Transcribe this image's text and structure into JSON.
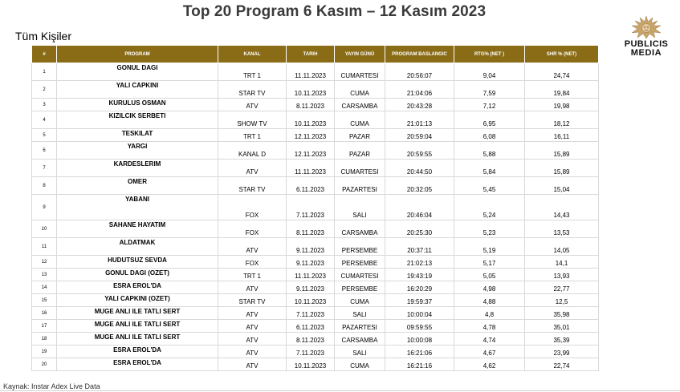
{
  "title": "Top 20 Program 6 Kasım – 12 Kasım 2023",
  "subtitle": "Tüm Kişiler",
  "logo": {
    "line1": "PUBLICIS",
    "line2": "MEDIA"
  },
  "headers": [
    "#",
    "PROGRAM",
    "KANAL",
    "TARIH",
    "YAYIN GÜNÜ",
    "PROGRAM BASLANGIC",
    "RTG% (NET )",
    "SHR % (NET)"
  ],
  "rows": [
    [
      "1",
      "GONUL DAGI",
      "TRT 1",
      "11.11.2023",
      "CUMARTESI",
      "20:56:07",
      "9,04",
      "24,74"
    ],
    [
      "2",
      "YALI CAPKINI",
      "STAR TV",
      "10.11.2023",
      "CUMA",
      "21:04:06",
      "7,59",
      "19,84"
    ],
    [
      "3",
      "KURULUS OSMAN",
      "ATV",
      "8.11.2023",
      "CARSAMBA",
      "20:43:28",
      "7,12",
      "19,98"
    ],
    [
      "4",
      "KIZILCIK SERBETI",
      "SHOW TV",
      "10.11.2023",
      "CUMA",
      "21:01:13",
      "6,95",
      "18,12"
    ],
    [
      "5",
      "TESKILAT",
      "TRT 1",
      "12.11.2023",
      "PAZAR",
      "20:59:04",
      "6,08",
      "16,11"
    ],
    [
      "6",
      "YARGI",
      "KANAL D",
      "12.11.2023",
      "PAZAR",
      "20:59:55",
      "5,88",
      "15,89"
    ],
    [
      "7",
      "KARDESLERIM",
      "ATV",
      "11.11.2023",
      "CUMARTESI",
      "20:44:50",
      "5,84",
      "15,89"
    ],
    [
      "8",
      "OMER",
      "STAR TV",
      "6.11.2023",
      "PAZARTESI",
      "20:32:05",
      "5,45",
      "15,04"
    ],
    [
      "9",
      "YABANI",
      "FOX",
      "7.11.2023",
      "SALI",
      "20:46:04",
      "5,24",
      "14,43"
    ],
    [
      "10",
      "SAHANE HAYATIM",
      "FOX",
      "8.11.2023",
      "CARSAMBA",
      "20:25:30",
      "5,23",
      "13,53"
    ],
    [
      "11",
      "ALDATMAK",
      "ATV",
      "9.11.2023",
      "PERSEMBE",
      "20:37:11",
      "5,19",
      "14,05"
    ],
    [
      "12",
      "HUDUTSUZ SEVDA",
      "FOX",
      "9.11.2023",
      "PERSEMBE",
      "21:02:13",
      "5,17",
      "14,1"
    ],
    [
      "13",
      "GONUL DAGI (OZET)",
      "TRT 1",
      "11.11.2023",
      "CUMARTESI",
      "19:43:19",
      "5,05",
      "13,93"
    ],
    [
      "14",
      "ESRA EROL'DA",
      "ATV",
      "9.11.2023",
      "PERSEMBE",
      "16:20:29",
      "4,98",
      "22,77"
    ],
    [
      "15",
      "YALI CAPKINI (OZET)",
      "STAR TV",
      "10.11.2023",
      "CUMA",
      "19:59:37",
      "4,88",
      "12,5"
    ],
    [
      "16",
      "MUGE ANLI ILE TATLI SERT",
      "ATV",
      "7.11.2023",
      "SALI",
      "10:00:04",
      "4,8",
      "35,98"
    ],
    [
      "17",
      "MUGE ANLI ILE TATLI SERT",
      "ATV",
      "6.11.2023",
      "PAZARTESI",
      "09:59:55",
      "4,78",
      "35,01"
    ],
    [
      "18",
      "MUGE ANLI ILE TATLI SERT",
      "ATV",
      "8.11.2023",
      "CARSAMBA",
      "10:00:08",
      "4,74",
      "35,39"
    ],
    [
      "19",
      "ESRA EROL'DA",
      "ATV",
      "7.11.2023",
      "SALI",
      "16:21:06",
      "4,67",
      "23,99"
    ],
    [
      "20",
      "ESRA EROL'DA",
      "ATV",
      "10.11.2023",
      "CUMA",
      "16:21:16",
      "4,62",
      "22,74"
    ]
  ],
  "source": "Kaynak: Instar  Adex Live Data",
  "colors": {
    "header_bg": "#8a6c17",
    "header_text": "#ffffff",
    "grid": "#d9d9d9"
  }
}
